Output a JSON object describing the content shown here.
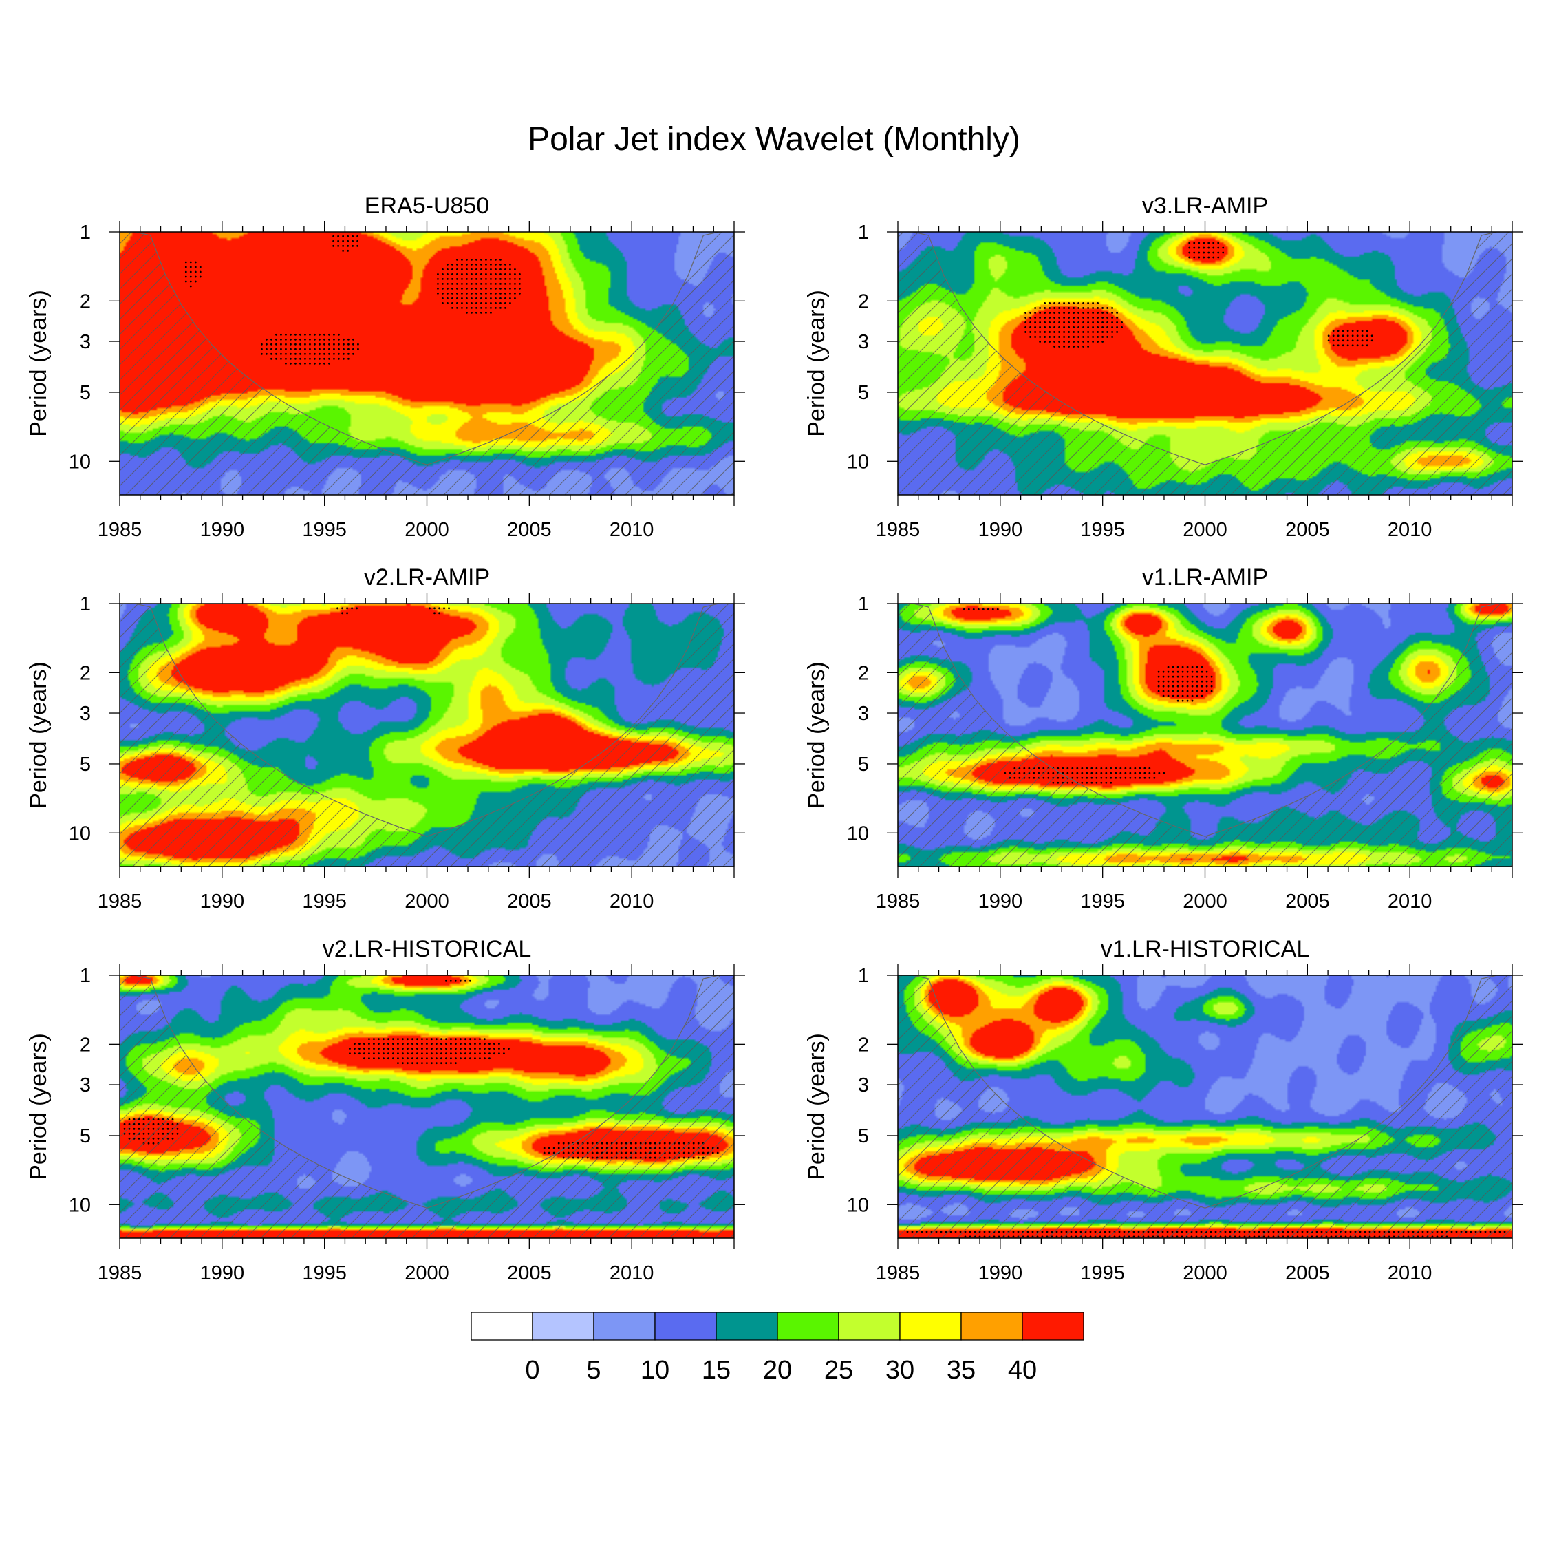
{
  "title": "Polar Jet index Wavelet (Monthly)",
  "colorbar": {
    "colors": [
      "#ffffff",
      "#b4c4ff",
      "#7d96f5",
      "#5a6bf0",
      "#00958f",
      "#5af500",
      "#c3ff2d",
      "#ffff00",
      "#ffa000",
      "#ff1a00"
    ],
    "labels": [
      "0",
      "5",
      "10",
      "15",
      "20",
      "25",
      "30",
      "35",
      "40"
    ]
  },
  "chart_data": [
    {
      "type": "heatmap",
      "title": "ERA5-U850",
      "xlabel": "",
      "ylabel": "Period (years)",
      "xlim": [
        1985,
        2015
      ],
      "ylim": [
        1,
        14
      ],
      "xticks": [
        "1985",
        "1990",
        "1995",
        "2000",
        "2005",
        "2010"
      ],
      "yticks": [
        "1",
        "2",
        "3",
        "5",
        "10"
      ],
      "blobs": [
        [
          1985,
          15,
          1.0,
          6,
          0.6,
          2.0
        ],
        [
          1987,
          1.25,
          44,
          5,
          0.9,
          1.2
        ],
        [
          1994.5,
          1.4,
          47,
          4,
          0.45,
          3.5
        ],
        [
          1990,
          3.2,
          48,
          10,
          0.45,
          1.8
        ],
        [
          2003,
          1.6,
          52,
          4,
          0.6,
          1.6
        ],
        [
          2003,
          4.5,
          46,
          5,
          0.3,
          1.4
        ],
        [
          1995.5,
          1.85,
          3,
          2.8,
          0.35,
          1.6
        ],
        [
          1990,
          1.4,
          2,
          1.2,
          0.2,
          1.6
        ],
        [
          1993,
          1.2,
          4,
          1.5,
          0.3,
          1.6
        ],
        [
          1998,
          4.5,
          6,
          8,
          0.15,
          1.6
        ],
        [
          2005,
          7.8,
          24,
          9,
          0.2,
          1.8
        ],
        [
          2000,
          12,
          0,
          30,
          0.3,
          1.6
        ],
        [
          1985,
          5.3,
          26,
          4,
          0.3,
          1.4
        ],
        [
          2014,
          2.5,
          0,
          6,
          0.5,
          1.6
        ],
        [
          2008,
          3.2,
          16,
          5,
          0.3,
          1.6
        ]
      ],
      "stipples": [
        [
          1994.2,
          3.2,
          2.5,
          0.18
        ],
        [
          2002.5,
          1.7,
          2.2,
          0.3
        ],
        [
          1988.5,
          1.5,
          0.5,
          0.15
        ],
        [
          1996,
          1.1,
          0.8,
          0.1
        ]
      ]
    },
    {
      "type": "heatmap",
      "title": "v3.LR-AMIP",
      "xlabel": "",
      "ylabel": "Period (years)",
      "xlim": [
        1985,
        2015
      ],
      "ylim": [
        1,
        14
      ],
      "xticks": [
        "1985",
        "1990",
        "1995",
        "2000",
        "2005",
        "2010"
      ],
      "yticks": [
        "1",
        "2",
        "3",
        "5",
        "10"
      ],
      "blobs": [
        [
          1993.5,
          2.7,
          52,
          4,
          0.35,
          1.6
        ],
        [
          1997,
          4.4,
          48,
          6,
          0.25,
          1.6
        ],
        [
          2008,
          2.9,
          48,
          3,
          0.3,
          1.6
        ],
        [
          2000,
          1.2,
          44,
          2,
          0.2,
          1.6
        ],
        [
          1999,
          5.5,
          28,
          14,
          0.2,
          1.8
        ],
        [
          2000,
          9,
          18,
          10,
          0.5,
          1.6
        ],
        [
          2012,
          10,
          26,
          3,
          0.15,
          1.6
        ],
        [
          1986,
          2.5,
          18,
          2,
          0.5,
          1.6
        ],
        [
          2005,
          1.5,
          14,
          4,
          0.3,
          1.6
        ],
        [
          1990,
          1.3,
          16,
          2,
          0.3,
          1.6
        ]
      ],
      "stipples": [
        [
          1993.5,
          2.5,
          2.5,
          0.25
        ],
        [
          2007,
          2.9,
          1.2,
          0.12
        ],
        [
          2000,
          1.2,
          1.0,
          0.12
        ]
      ]
    },
    {
      "type": "heatmap",
      "title": "v2.LR-AMIP",
      "xlabel": "",
      "ylabel": "Period (years)",
      "xlim": [
        1985,
        2015
      ],
      "ylim": [
        1,
        14
      ],
      "xticks": [
        "1985",
        "1990",
        "1995",
        "2000",
        "2005",
        "2010"
      ],
      "yticks": [
        "1",
        "2",
        "3",
        "5",
        "10"
      ],
      "blobs": [
        [
          1990,
          2.0,
          46,
          4,
          0.3,
          1.8
        ],
        [
          1998,
          1.2,
          48,
          5,
          0.25,
          1.8
        ],
        [
          1990,
          1.1,
          44,
          2,
          0.2,
          1.6
        ],
        [
          2008,
          4.5,
          46,
          7,
          0.2,
          1.8
        ],
        [
          2006,
          3.7,
          40,
          2,
          0.25,
          1.6
        ],
        [
          1987,
          5.2,
          44,
          3,
          0.2,
          1.6
        ],
        [
          1989,
          11,
          46,
          5,
          0.25,
          1.8
        ],
        [
          1995,
          8,
          22,
          9,
          0.35,
          1.6
        ],
        [
          2003,
          11.5,
          2,
          8,
          0.1,
          1.8
        ],
        [
          2003,
          2.5,
          24,
          3,
          0.6,
          1.6
        ],
        [
          1994,
          1.8,
          20,
          3,
          0.3,
          1.6
        ],
        [
          2012,
          1.5,
          10,
          4,
          0.5,
          1.6
        ],
        [
          1998,
          4,
          6,
          5,
          0.2,
          1.6
        ],
        [
          1999,
          1.7,
          26,
          2,
          0.2,
          1.6
        ]
      ],
      "stipples": [
        [
          1996,
          1.05,
          0.6,
          0.05
        ],
        [
          2000.5,
          1.05,
          0.6,
          0.05
        ]
      ]
    },
    {
      "type": "heatmap",
      "title": "v1.LR-AMIP",
      "xlabel": "",
      "ylabel": "Period (years)",
      "xlim": [
        1985,
        2015
      ],
      "ylim": [
        1,
        14
      ],
      "xticks": [
        "1985",
        "1990",
        "1995",
        "2000",
        "2005",
        "2010"
      ],
      "yticks": [
        "1",
        "2",
        "3",
        "5",
        "10"
      ],
      "blobs": [
        [
          1994,
          5.5,
          52,
          8,
          0.18,
          1.8
        ],
        [
          1999,
          2.2,
          50,
          2.5,
          0.3,
          1.6
        ],
        [
          1989,
          1.1,
          42,
          3,
          0.15,
          1.6
        ],
        [
          2004,
          1.3,
          42,
          1.5,
          0.2,
          1.6
        ],
        [
          1997,
          1.2,
          40,
          1.5,
          0.15,
          1.6
        ],
        [
          2014,
          1.05,
          44,
          1.5,
          0.12,
          1.6
        ],
        [
          1986,
          2.2,
          28,
          2,
          0.2,
          1.6
        ],
        [
          2000,
          4.2,
          22,
          12,
          0.15,
          1.6
        ],
        [
          2000,
          13,
          30,
          14,
          0.12,
          1.6
        ],
        [
          2011,
          2.0,
          30,
          2,
          0.3,
          1.6
        ],
        [
          2014,
          6,
          34,
          2,
          0.2,
          1.6
        ],
        [
          2005,
          9.5,
          8,
          12,
          0.25,
          1.8
        ],
        [
          1998,
          1.6,
          22,
          2,
          0.2,
          1.6
        ]
      ],
      "stipples": [
        [
          1994,
          5.5,
          4.0,
          0.1
        ],
        [
          1999,
          2.2,
          1.5,
          0.2
        ],
        [
          1989,
          1.05,
          1.0,
          0.04
        ]
      ]
    },
    {
      "type": "heatmap",
      "title": "v2.LR-HISTORICAL",
      "xlabel": "",
      "ylabel": "Period (years)",
      "xlim": [
        1985,
        2015
      ],
      "ylim": [
        1,
        14
      ],
      "xticks": [
        "1985",
        "1990",
        "1995",
        "2000",
        "2005",
        "2010"
      ],
      "yticks": [
        "1",
        "2",
        "3",
        "5",
        "10"
      ],
      "blobs": [
        [
          2000,
          2.2,
          50,
          7,
          0.22,
          1.8
        ],
        [
          1986.5,
          5,
          50,
          4,
          0.25,
          1.8
        ],
        [
          2010,
          5.5,
          52,
          7,
          0.22,
          1.8
        ],
        [
          2000,
          1.05,
          42,
          3,
          0.1,
          1.6
        ],
        [
          1986,
          1.05,
          40,
          1.5,
          0.1,
          1.6
        ],
        [
          2000,
          13.5,
          60,
          30,
          0.06,
          1.6
        ],
        [
          1999,
          10,
          8,
          30,
          0.15,
          1.6
        ],
        [
          1999,
          3.2,
          8,
          6,
          0.2,
          1.6
        ],
        [
          1990,
          6.5,
          6,
          2.5,
          0.15,
          1.6
        ],
        [
          1995,
          1.5,
          16,
          5,
          0.3,
          1.6
        ],
        [
          2008,
          2.5,
          26,
          4,
          0.3,
          1.6
        ],
        [
          1988,
          2.5,
          26,
          2.5,
          0.25,
          1.6
        ]
      ],
      "stipples": [
        [
          2000,
          2.1,
          4.0,
          0.15
        ],
        [
          1986.5,
          4.7,
          1.5,
          0.15
        ],
        [
          2010,
          5.8,
          4.5,
          0.12
        ],
        [
          2001.5,
          1.05,
          0.8,
          0.04
        ]
      ]
    },
    {
      "type": "heatmap",
      "title": "v1.LR-HISTORICAL",
      "xlabel": "",
      "ylabel": "Period (years)",
      "xlim": [
        1985,
        2015
      ],
      "ylim": [
        1,
        14
      ],
      "xticks": [
        "1985",
        "1990",
        "1995",
        "2000",
        "2005",
        "2010"
      ],
      "yticks": [
        "1",
        "2",
        "3",
        "5",
        "10"
      ],
      "blobs": [
        [
          1990,
          6.8,
          50,
          6,
          0.2,
          1.8
        ],
        [
          1990,
          2.0,
          44,
          1.5,
          0.15,
          1.6
        ],
        [
          1987.5,
          1.2,
          44,
          1.5,
          0.2,
          1.6
        ],
        [
          1993,
          1.3,
          40,
          1.5,
          0.2,
          1.6
        ],
        [
          2000,
          13.5,
          58,
          30,
          0.08,
          1.6
        ],
        [
          1990,
          1.6,
          24,
          4,
          0.4,
          1.6
        ],
        [
          2000,
          5.2,
          26,
          12,
          0.15,
          1.6
        ],
        [
          2005,
          8.5,
          18,
          10,
          0.15,
          1.6
        ],
        [
          2001,
          1.4,
          20,
          1.5,
          0.15,
          1.6
        ],
        [
          2014,
          2.0,
          18,
          2,
          0.3,
          1.6
        ],
        [
          1996,
          2.5,
          14,
          3,
          0.3,
          1.6
        ]
      ],
      "stipples": [
        [
          2000,
          13.3,
          15,
          0.06
        ]
      ]
    }
  ]
}
